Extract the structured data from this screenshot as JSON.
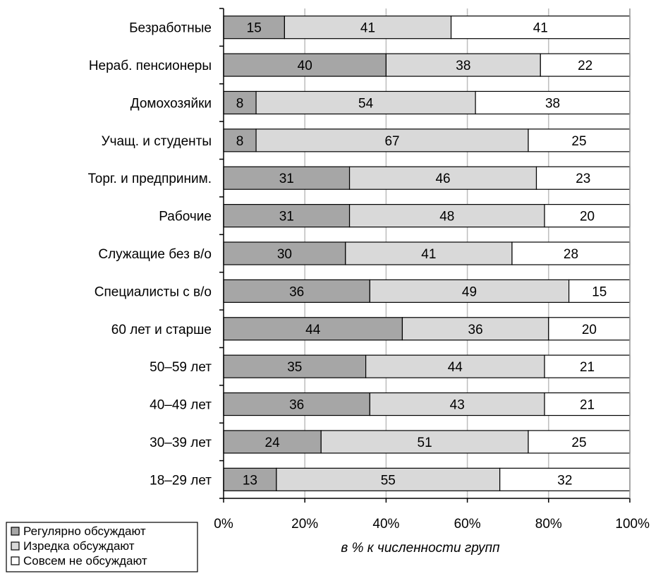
{
  "chart_data": {
    "type": "bar",
    "orientation": "horizontal",
    "stacked": true,
    "categories": [
      "Безработные",
      "Нераб. пенсионеры",
      "Домохозяйки",
      "Учащ. и студенты",
      "Торг. и предприним.",
      "Рабочие",
      "Служащие без в/о",
      "Специалисты с в/о",
      "60 лет и старше",
      "50–59 лет",
      "40–49 лет",
      "30–39 лет",
      "18–29 лет"
    ],
    "series": [
      {
        "name": "Регулярно обсуждают",
        "color": "#a6a6a6",
        "values": [
          15,
          40,
          8,
          8,
          31,
          31,
          30,
          36,
          44,
          35,
          36,
          24,
          13
        ]
      },
      {
        "name": "Изредка обсуждают",
        "color": "#d9d9d9",
        "values": [
          41,
          38,
          54,
          67,
          46,
          48,
          41,
          49,
          36,
          44,
          43,
          51,
          55
        ]
      },
      {
        "name": "Совсем не обсуждают",
        "color": "#ffffff",
        "values": [
          41,
          22,
          38,
          25,
          23,
          20,
          28,
          15,
          20,
          21,
          21,
          25,
          32
        ]
      }
    ],
    "xlabel": "в % к численности групп",
    "xlim": [
      0,
      100
    ],
    "x_ticks": [
      "0%",
      "20%",
      "40%",
      "60%",
      "80%",
      "100%"
    ],
    "grid": "vertical",
    "legend_position": "bottom-left"
  }
}
